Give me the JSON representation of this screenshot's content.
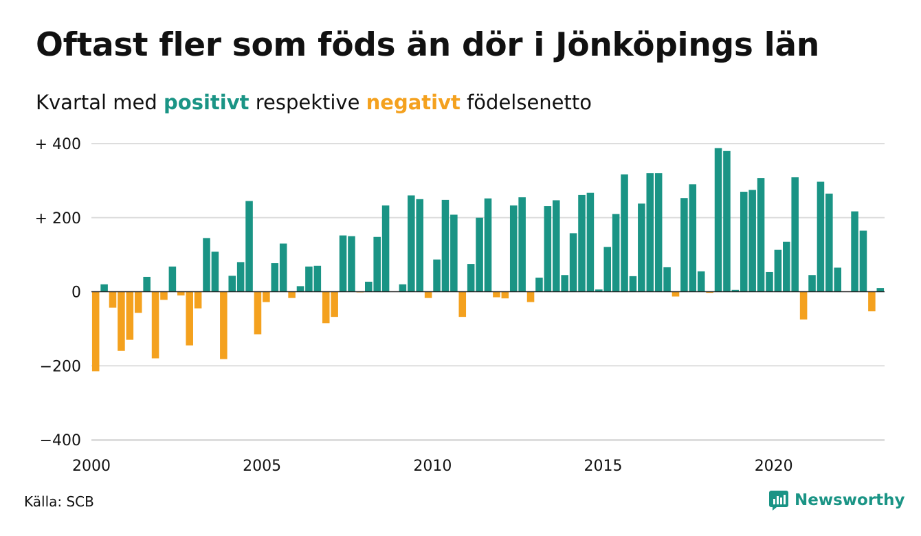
{
  "title": "Oftast fler som föds än dör i Jönköpings län",
  "subtitle": {
    "prefix": "Kvartal med",
    "positive_word": "positivt",
    "middle": "respektive",
    "negative_word": "negativt",
    "suffix": "födelsenetto"
  },
  "colors": {
    "positive": "#1a9485",
    "negative": "#f4a11e",
    "grid": "#dddddd",
    "axis": "#222222",
    "text": "#111111"
  },
  "source": "Källa: SCB",
  "brand": {
    "name": "Newsworthy",
    "icon": "newsworthy-logo-icon"
  },
  "chart_data": {
    "type": "bar",
    "title": "Oftast fler som föds än dör i Jönköpings län",
    "xlabel": "",
    "ylabel": "",
    "ylim": [
      -400,
      400
    ],
    "y_ticks": [
      {
        "value": 400,
        "label": "+ 400"
      },
      {
        "value": 200,
        "label": "+ 200"
      },
      {
        "value": 0,
        "label": "0"
      },
      {
        "value": -200,
        "label": "−200"
      },
      {
        "value": -400,
        "label": "−400"
      }
    ],
    "x_ticks": [
      {
        "value": 2000,
        "label": "2000"
      },
      {
        "value": 2005,
        "label": "2005"
      },
      {
        "value": 2010,
        "label": "2010"
      },
      {
        "value": 2015,
        "label": "2015"
      },
      {
        "value": 2020,
        "label": "2020"
      }
    ],
    "x_range": [
      2000,
      2023.25
    ],
    "grid": true,
    "legend": "none",
    "first_quarter": "2000 Q1",
    "values": [
      -215,
      20,
      -43,
      -160,
      -130,
      -57,
      40,
      -180,
      -22,
      68,
      -10,
      -145,
      -45,
      145,
      108,
      -182,
      43,
      80,
      245,
      -115,
      -28,
      77,
      130,
      -17,
      15,
      68,
      70,
      -85,
      -68,
      152,
      150,
      -2,
      27,
      148,
      233,
      0,
      20,
      260,
      250,
      -17,
      87,
      248,
      208,
      -68,
      75,
      200,
      252,
      -15,
      -18,
      233,
      255,
      -28,
      38,
      231,
      247,
      45,
      158,
      261,
      267,
      6,
      121,
      210,
      317,
      42,
      238,
      320,
      320,
      66,
      -13,
      253,
      290,
      55,
      -3,
      388,
      380,
      5,
      270,
      275,
      307,
      53,
      113,
      135,
      309,
      -75,
      45,
      297,
      265,
      65,
      0,
      217,
      165,
      -53,
      10
    ]
  }
}
